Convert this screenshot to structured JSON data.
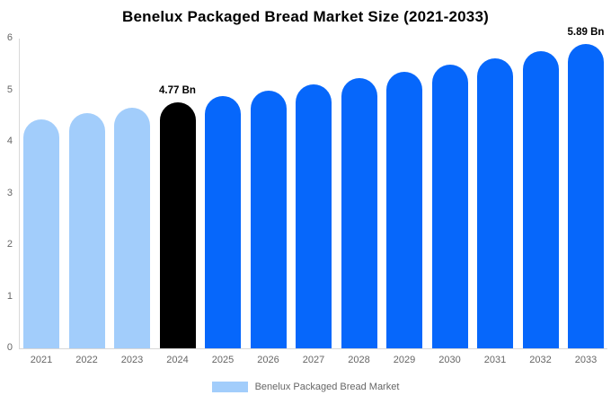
{
  "title": "Benelux Packaged Bread Market Size (2021-2033)",
  "legend": {
    "label": "Benelux Packaged Bread Market",
    "swatch_color": "#A2CDFB"
  },
  "palette": {
    "historical_bar": "#A2CDFB",
    "base_year_bar": "#000000",
    "forecast_bar": "#0667FB",
    "axis_line": "#D8D8D8",
    "tick_text": "#666666",
    "annotation_text": "#000000",
    "background": "#FFFFFF"
  },
  "chart_data": {
    "type": "bar",
    "title": "Benelux Packaged Bread Market Size (2021-2033)",
    "unit": "Bn",
    "xlabel": "",
    "ylabel": "",
    "categories": [
      "2021",
      "2022",
      "2023",
      "2024",
      "2025",
      "2026",
      "2027",
      "2028",
      "2029",
      "2030",
      "2031",
      "2032",
      "2033"
    ],
    "values": [
      4.44,
      4.55,
      4.66,
      4.77,
      4.88,
      5.0,
      5.12,
      5.24,
      5.36,
      5.49,
      5.62,
      5.75,
      5.89
    ],
    "bar_colors": [
      "#A2CDFB",
      "#A2CDFB",
      "#A2CDFB",
      "#000000",
      "#0667FB",
      "#0667FB",
      "#0667FB",
      "#0667FB",
      "#0667FB",
      "#0667FB",
      "#0667FB",
      "#0667FB",
      "#0667FB"
    ],
    "annotations": [
      {
        "category": "2024",
        "index": 3,
        "text": "4.77 Bn"
      },
      {
        "category": "2033",
        "index": 12,
        "text": "5.89 Bn"
      }
    ],
    "ylim": [
      0,
      6
    ],
    "yticks": [
      0,
      1,
      2,
      3,
      4,
      5,
      6
    ],
    "grid": false,
    "legend_position": "bottom",
    "legend_entries": [
      "Benelux Packaged Bread Market"
    ]
  }
}
